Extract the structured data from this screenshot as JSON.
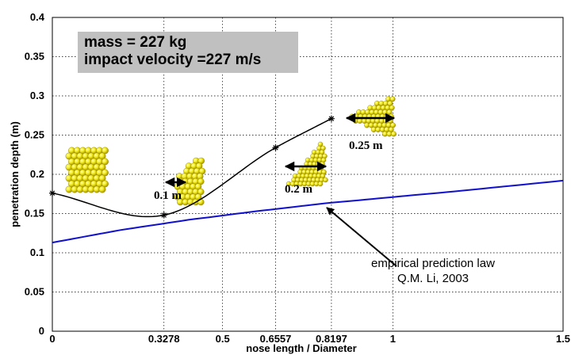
{
  "chart_data": {
    "type": "line",
    "xlabel": "nose length / Diameter",
    "ylabel": "penetration depth (m)",
    "xlim": [
      0,
      1.5
    ],
    "ylim": [
      0,
      0.4
    ],
    "x_ticks": [
      "0",
      "0.3278",
      "0.5",
      "0.6557",
      "0.8197",
      "1",
      "1.5"
    ],
    "y_ticks": [
      "0",
      "0.05",
      "0.1",
      "0.15",
      "0.2",
      "0.25",
      "0.3",
      "0.35",
      "0.4"
    ],
    "grid": "dotted",
    "series": [
      {
        "color": "#000000",
        "marker": "star",
        "x": [
          0,
          0.3278,
          0.6557,
          0.8197
        ],
        "y": [
          0.176,
          0.148,
          0.234,
          0.271
        ]
      },
      {
        "color": "#1010cc",
        "x": [
          0,
          0.2,
          0.4,
          0.6,
          0.8,
          1.0,
          1.2,
          1.5
        ],
        "y": [
          0.113,
          0.129,
          0.142,
          0.153,
          0.163,
          0.171,
          0.179,
          0.192
        ]
      }
    ],
    "info": {
      "line1": "mass = 227 kg",
      "line2": "impact velocity =227 m/s"
    },
    "annotation": {
      "line1": "empirical prediction law",
      "line2": "Q.M. Li, 2003"
    },
    "size_labels": [
      "0.1 m",
      "0.2 m",
      "0.25 m"
    ]
  }
}
